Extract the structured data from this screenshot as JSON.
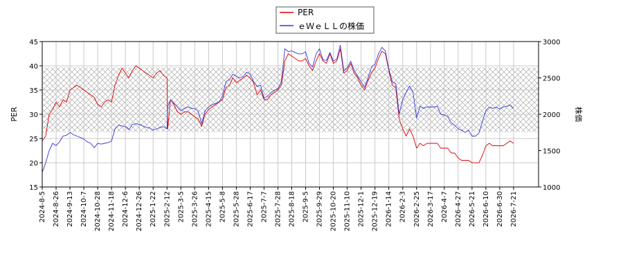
{
  "chart_data": {
    "type": "line",
    "legend": {
      "placement": "top-center",
      "entries": [
        {
          "label": "PER",
          "color": "#dd0000"
        },
        {
          "label": "ｅＷｅＬＬの株価",
          "color": "#3333dd"
        }
      ]
    },
    "left_axis": {
      "label": "PER",
      "ylim": [
        15,
        45
      ],
      "ticks": [
        15,
        20,
        25,
        30,
        35,
        40,
        45
      ]
    },
    "right_axis": {
      "label": "株価",
      "ylim": [
        1000,
        3000
      ],
      "ticks": [
        1000,
        1500,
        2000,
        2500,
        3000
      ]
    },
    "grid": true,
    "hatched_band": {
      "axis": "left",
      "range": [
        26.3,
        39.7
      ]
    },
    "x_tick_labels": [
      "2024-8-5",
      "2024-8-26",
      "2024-9-13",
      "2024-10-7",
      "2024-10-28",
      "2024-11-18",
      "2024-12-6",
      "2024-12-26",
      "2025-1-22",
      "2025-2-12",
      "2025-3-5",
      "2025-3-26",
      "2025-4-15",
      "2025-5-8",
      "2025-5-28",
      "2025-6-17",
      "2025-7-7",
      "2025-7-28",
      "2025-8-18",
      "2025-9-5",
      "2025-9-29",
      "2025-10-20",
      "2025-11-10",
      "2025-12-1",
      "2025-12-19",
      "2026-1-14",
      "2026-2-3",
      "2026-2-25",
      "2026-3-17",
      "2026-4-7",
      "2026-4-27",
      "2026-5-21",
      "2026-6-10",
      "2026-6-30",
      "2026-7-21"
    ],
    "x_range": [
      0,
      35.8
    ],
    "series": [
      {
        "name": "PER",
        "axis": "left",
        "color": "#dd0000",
        "points": [
          [
            0,
            24.5
          ],
          [
            0.25,
            25.5
          ],
          [
            0.5,
            30
          ],
          [
            0.75,
            31
          ],
          [
            1,
            32.5
          ],
          [
            1.25,
            31.5
          ],
          [
            1.5,
            33
          ],
          [
            1.75,
            32.5
          ],
          [
            2,
            35
          ],
          [
            2.25,
            35.5
          ],
          [
            2.5,
            36
          ],
          [
            2.75,
            35.5
          ],
          [
            3,
            35
          ],
          [
            3.25,
            34.5
          ],
          [
            3.5,
            34
          ],
          [
            3.75,
            33.5
          ],
          [
            4,
            32
          ],
          [
            4.25,
            31.5
          ],
          [
            4.5,
            32.5
          ],
          [
            4.75,
            33
          ],
          [
            5,
            32.5
          ],
          [
            5.25,
            36
          ],
          [
            5.5,
            38
          ],
          [
            5.75,
            39.5
          ],
          [
            6,
            38.5
          ],
          [
            6.25,
            37.5
          ],
          [
            6.5,
            39
          ],
          [
            6.75,
            40
          ],
          [
            7,
            39.5
          ],
          [
            7.25,
            39
          ],
          [
            7.5,
            38.5
          ],
          [
            7.75,
            38
          ],
          [
            8,
            37.5
          ],
          [
            8.25,
            38.5
          ],
          [
            8.5,
            39
          ],
          [
            8.75,
            38
          ],
          [
            9,
            37.5
          ],
          [
            9.05,
            27
          ],
          [
            9.25,
            33
          ],
          [
            9.5,
            32
          ],
          [
            9.75,
            30.5
          ],
          [
            10,
            30
          ],
          [
            10.25,
            30.5
          ],
          [
            10.5,
            30.5
          ],
          [
            10.75,
            30
          ],
          [
            11,
            29.5
          ],
          [
            11.25,
            29
          ],
          [
            11.5,
            27.5
          ],
          [
            11.75,
            30
          ],
          [
            12,
            31
          ],
          [
            12.25,
            31.5
          ],
          [
            12.5,
            32
          ],
          [
            12.75,
            32.5
          ],
          [
            13,
            33
          ],
          [
            13.25,
            35.5
          ],
          [
            13.5,
            36
          ],
          [
            13.75,
            37.5
          ],
          [
            14,
            36.5
          ],
          [
            14.25,
            37
          ],
          [
            14.5,
            37.5
          ],
          [
            14.75,
            38
          ],
          [
            15,
            37.5
          ],
          [
            15.25,
            36.5
          ],
          [
            15.5,
            34
          ],
          [
            15.75,
            35
          ],
          [
            16,
            33
          ],
          [
            16.25,
            33
          ],
          [
            16.5,
            34
          ],
          [
            16.75,
            34.5
          ],
          [
            17,
            35
          ],
          [
            17.25,
            36
          ],
          [
            17.5,
            41
          ],
          [
            17.75,
            42.5
          ],
          [
            18,
            42
          ],
          [
            18.25,
            41.5
          ],
          [
            18.5,
            41
          ],
          [
            18.75,
            41
          ],
          [
            19,
            41.5
          ],
          [
            19.25,
            40
          ],
          [
            19.5,
            39
          ],
          [
            19.75,
            41
          ],
          [
            20,
            42.5
          ],
          [
            20.25,
            41
          ],
          [
            20.5,
            40.5
          ],
          [
            20.75,
            42.5
          ],
          [
            21,
            40.5
          ],
          [
            21.25,
            41
          ],
          [
            21.5,
            43.5
          ],
          [
            21.75,
            38.5
          ],
          [
            22,
            39
          ],
          [
            22.25,
            40.5
          ],
          [
            22.5,
            38.5
          ],
          [
            22.75,
            37.5
          ],
          [
            23,
            36
          ],
          [
            23.25,
            35
          ],
          [
            23.5,
            37
          ],
          [
            23.75,
            38.5
          ],
          [
            24,
            39.5
          ],
          [
            24.25,
            41.5
          ],
          [
            24.5,
            43
          ],
          [
            24.75,
            42.5
          ],
          [
            25,
            39
          ],
          [
            25.25,
            36
          ],
          [
            25.5,
            35.5
          ],
          [
            25.75,
            29
          ],
          [
            26,
            27
          ],
          [
            26.25,
            25.5
          ],
          [
            26.5,
            27
          ],
          [
            26.75,
            25.5
          ],
          [
            27,
            23
          ],
          [
            27.25,
            24
          ],
          [
            27.5,
            23.5
          ],
          [
            27.75,
            24
          ],
          [
            28,
            24
          ],
          [
            28.25,
            24
          ],
          [
            28.5,
            24
          ],
          [
            28.75,
            23
          ],
          [
            29,
            23
          ],
          [
            29.25,
            23
          ],
          [
            29.5,
            22
          ],
          [
            29.75,
            22
          ],
          [
            30,
            21
          ],
          [
            30.25,
            20.5
          ],
          [
            30.5,
            20.5
          ],
          [
            30.75,
            20.5
          ],
          [
            31,
            20
          ],
          [
            31.25,
            20
          ],
          [
            31.5,
            20
          ],
          [
            31.75,
            21.5
          ],
          [
            32,
            23.5
          ],
          [
            32.25,
            24
          ],
          [
            32.5,
            23.5
          ],
          [
            32.75,
            23.5
          ],
          [
            33,
            23.5
          ],
          [
            33.25,
            23.5
          ],
          [
            33.5,
            24
          ],
          [
            33.75,
            24.5
          ],
          [
            34,
            24
          ]
        ]
      },
      {
        "name": "ｅＷｅＬＬの株価",
        "axis": "right",
        "color": "#3333dd",
        "points": [
          [
            0,
            1200
          ],
          [
            0.25,
            1330
          ],
          [
            0.5,
            1500
          ],
          [
            0.75,
            1600
          ],
          [
            1,
            1570
          ],
          [
            1.25,
            1620
          ],
          [
            1.5,
            1700
          ],
          [
            1.75,
            1710
          ],
          [
            2,
            1750
          ],
          [
            2.25,
            1720
          ],
          [
            2.5,
            1700
          ],
          [
            2.75,
            1680
          ],
          [
            3,
            1660
          ],
          [
            3.25,
            1620
          ],
          [
            3.5,
            1600
          ],
          [
            3.75,
            1540
          ],
          [
            4,
            1600
          ],
          [
            4.25,
            1590
          ],
          [
            4.5,
            1600
          ],
          [
            4.75,
            1610
          ],
          [
            5,
            1630
          ],
          [
            5.25,
            1800
          ],
          [
            5.5,
            1850
          ],
          [
            5.75,
            1840
          ],
          [
            6,
            1830
          ],
          [
            6.25,
            1790
          ],
          [
            6.5,
            1860
          ],
          [
            6.75,
            1870
          ],
          [
            7,
            1860
          ],
          [
            7.25,
            1840
          ],
          [
            7.5,
            1820
          ],
          [
            7.75,
            1810
          ],
          [
            8,
            1780
          ],
          [
            8.25,
            1800
          ],
          [
            8.5,
            1820
          ],
          [
            8.75,
            1830
          ],
          [
            9,
            1800
          ],
          [
            9.05,
            2100
          ],
          [
            9.25,
            2200
          ],
          [
            9.5,
            2150
          ],
          [
            9.75,
            2100
          ],
          [
            10,
            2050
          ],
          [
            10.25,
            2080
          ],
          [
            10.5,
            2100
          ],
          [
            10.75,
            2080
          ],
          [
            11,
            2080
          ],
          [
            11.25,
            2040
          ],
          [
            11.5,
            1870
          ],
          [
            11.75,
            2050
          ],
          [
            12,
            2100
          ],
          [
            12.25,
            2130
          ],
          [
            12.5,
            2150
          ],
          [
            12.75,
            2170
          ],
          [
            13,
            2250
          ],
          [
            13.25,
            2450
          ],
          [
            13.5,
            2480
          ],
          [
            13.75,
            2550
          ],
          [
            14,
            2520
          ],
          [
            14.25,
            2500
          ],
          [
            14.5,
            2520
          ],
          [
            14.75,
            2580
          ],
          [
            15,
            2550
          ],
          [
            15.25,
            2450
          ],
          [
            15.5,
            2380
          ],
          [
            15.75,
            2400
          ],
          [
            16,
            2220
          ],
          [
            16.25,
            2250
          ],
          [
            16.5,
            2300
          ],
          [
            16.75,
            2330
          ],
          [
            17,
            2350
          ],
          [
            17.25,
            2450
          ],
          [
            17.5,
            2900
          ],
          [
            17.75,
            2860
          ],
          [
            18,
            2870
          ],
          [
            18.25,
            2850
          ],
          [
            18.5,
            2830
          ],
          [
            18.75,
            2830
          ],
          [
            19,
            2860
          ],
          [
            19.25,
            2700
          ],
          [
            19.5,
            2650
          ],
          [
            19.75,
            2830
          ],
          [
            20,
            2900
          ],
          [
            20.25,
            2750
          ],
          [
            20.5,
            2740
          ],
          [
            20.75,
            2850
          ],
          [
            21,
            2730
          ],
          [
            21.25,
            2760
          ],
          [
            21.5,
            2950
          ],
          [
            21.75,
            2600
          ],
          [
            22,
            2640
          ],
          [
            22.25,
            2730
          ],
          [
            22.5,
            2610
          ],
          [
            22.75,
            2520
          ],
          [
            23,
            2450
          ],
          [
            23.25,
            2370
          ],
          [
            23.5,
            2500
          ],
          [
            23.75,
            2650
          ],
          [
            24,
            2690
          ],
          [
            24.25,
            2830
          ],
          [
            24.5,
            2920
          ],
          [
            24.75,
            2870
          ],
          [
            25,
            2620
          ],
          [
            25.25,
            2450
          ],
          [
            25.5,
            2420
          ],
          [
            25.75,
            2000
          ],
          [
            26,
            2200
          ],
          [
            26.25,
            2300
          ],
          [
            26.5,
            2390
          ],
          [
            26.75,
            2300
          ],
          [
            27,
            1950
          ],
          [
            27.25,
            2110
          ],
          [
            27.5,
            2080
          ],
          [
            27.75,
            2100
          ],
          [
            28,
            2100
          ],
          [
            28.25,
            2100
          ],
          [
            28.5,
            2110
          ],
          [
            28.75,
            2000
          ],
          [
            29,
            1990
          ],
          [
            29.25,
            1970
          ],
          [
            29.5,
            1880
          ],
          [
            29.75,
            1850
          ],
          [
            30,
            1800
          ],
          [
            30.25,
            1780
          ],
          [
            30.5,
            1750
          ],
          [
            30.75,
            1780
          ],
          [
            31,
            1700
          ],
          [
            31.25,
            1700
          ],
          [
            31.5,
            1740
          ],
          [
            31.75,
            1900
          ],
          [
            32,
            2050
          ],
          [
            32.25,
            2100
          ],
          [
            32.5,
            2080
          ],
          [
            32.75,
            2100
          ],
          [
            33,
            2070
          ],
          [
            33.25,
            2100
          ],
          [
            33.5,
            2110
          ],
          [
            33.75,
            2130
          ],
          [
            34,
            2080
          ]
        ]
      }
    ]
  }
}
